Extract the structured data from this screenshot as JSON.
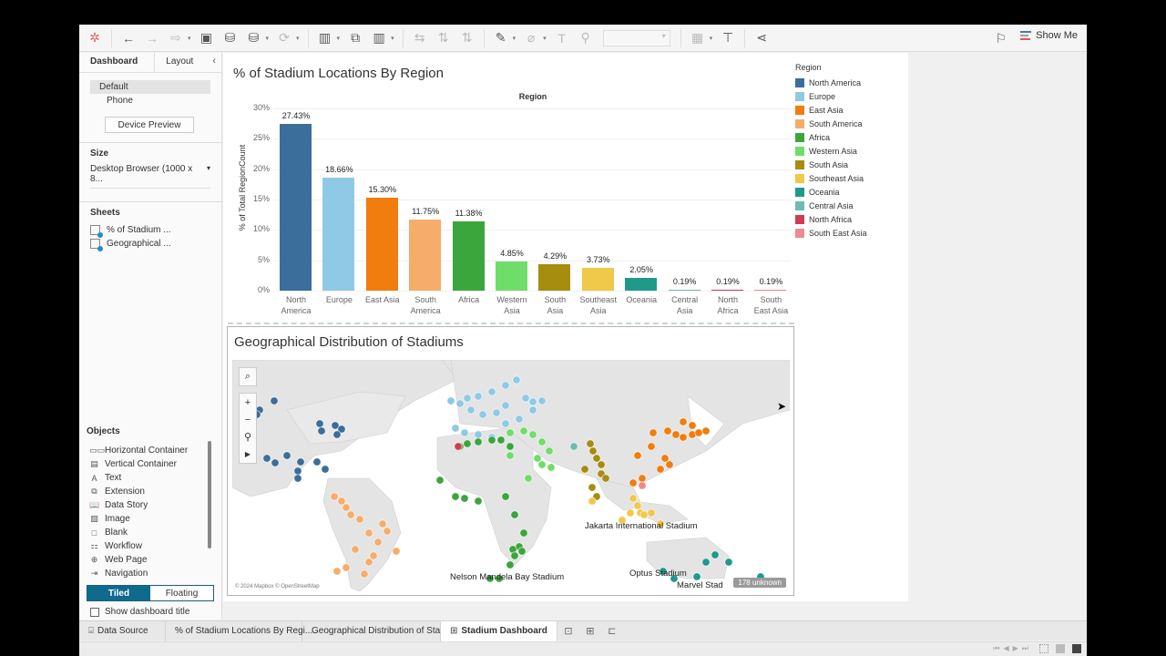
{
  "toolbar": {
    "show_me_label": "Show Me",
    "show_me_colors": [
      "#4e79a7",
      "#e15759",
      "#a0a0a0"
    ]
  },
  "left_panel": {
    "tabs": [
      {
        "label": "Dashboard"
      },
      {
        "label": "Layout"
      }
    ],
    "devices": [
      {
        "label": "Default"
      },
      {
        "label": "Phone"
      }
    ],
    "device_preview_label": "Device Preview",
    "size": {
      "title": "Size",
      "value": "Desktop Browser (1000 x 8..."
    },
    "sheets": {
      "title": "Sheets",
      "items": [
        {
          "label": "% of Stadium ..."
        },
        {
          "label": "Geographical ..."
        }
      ]
    },
    "objects": {
      "title": "Objects",
      "items": [
        {
          "label": "Horizontal Container",
          "icon": "▭▭"
        },
        {
          "label": "Vertical Container",
          "icon": "▤"
        },
        {
          "label": "Text",
          "icon": "A"
        },
        {
          "label": "Extension",
          "icon": "⧉"
        },
        {
          "label": "Data Story",
          "icon": "📖"
        },
        {
          "label": "Image",
          "icon": "▨"
        },
        {
          "label": "Blank",
          "icon": "□"
        },
        {
          "label": "Workflow",
          "icon": "⚏"
        },
        {
          "label": "Web Page",
          "icon": "⊕"
        },
        {
          "label": "Navigation",
          "icon": "⇥"
        }
      ],
      "tiled_label": "Tiled",
      "floating_label": "Floating",
      "show_title_label": "Show dashboard title"
    }
  },
  "chart": {
    "title": "% of Stadium Locations By Region",
    "column_header": "Region",
    "ylabel": "% of Total RegionCount",
    "yticks": [
      "30%",
      "25%",
      "20%",
      "15%",
      "10%",
      "5%",
      "0%"
    ]
  },
  "chart_data": {
    "type": "bar",
    "title": "% of Stadium Locations By Region",
    "xlabel": "Region",
    "ylabel": "% of Total RegionCount",
    "ylim": [
      0,
      30
    ],
    "categories": [
      "North America",
      "Europe",
      "East Asia",
      "South America",
      "Africa",
      "Western Asia",
      "South Asia",
      "Southeast Asia",
      "Oceania",
      "Central Asia",
      "North Africa",
      "South East Asia"
    ],
    "values": [
      27.43,
      18.66,
      15.3,
      11.75,
      11.38,
      4.85,
      4.29,
      3.73,
      2.05,
      0.19,
      0.19,
      0.19
    ],
    "labels": [
      "27.43%",
      "18.66%",
      "15.30%",
      "11.75%",
      "11.38%",
      "4.85%",
      "4.29%",
      "3.73%",
      "2.05%",
      "0.19%",
      "0.19%",
      "0.19%"
    ],
    "colors": [
      "#3b6e9a",
      "#8ecae6",
      "#f07d0e",
      "#f6ad6b",
      "#3aa63c",
      "#6fdd6a",
      "#a68d0d",
      "#f0c84a",
      "#1f9a8a",
      "#6dbcb0",
      "#d13a52",
      "#f08890"
    ],
    "legend_position": "right",
    "grid": true
  },
  "legend": {
    "title": "Region",
    "items": [
      {
        "label": "North America",
        "color": "#3b6e9a"
      },
      {
        "label": "Europe",
        "color": "#8ecae6"
      },
      {
        "label": "East Asia",
        "color": "#f07d0e"
      },
      {
        "label": "South America",
        "color": "#f6ad6b"
      },
      {
        "label": "Africa",
        "color": "#3aa63c"
      },
      {
        "label": "Western Asia",
        "color": "#6fdd6a"
      },
      {
        "label": "South Asia",
        "color": "#a68d0d"
      },
      {
        "label": "Southeast Asia",
        "color": "#f0c84a"
      },
      {
        "label": "Oceania",
        "color": "#1f9a8a"
      },
      {
        "label": "Central Asia",
        "color": "#6dbcb0"
      },
      {
        "label": "North Africa",
        "color": "#d13a52"
      },
      {
        "label": "South East Asia",
        "color": "#f08890"
      }
    ]
  },
  "map": {
    "title": "Geographical Distribution of Stadiums",
    "labels": [
      {
        "text": "Jakarta International Stadium"
      },
      {
        "text": "Nelson Mandela Bay Stadium"
      },
      {
        "text": "Optus Stadium"
      },
      {
        "text": "Marvel Stad"
      }
    ],
    "unknown_badge": "178 unknown",
    "copyright": "© 2024 Mapbox © OpenStreetMap"
  },
  "bottom_tabs": {
    "items": [
      {
        "label": "Data Source",
        "icon": "⌸"
      },
      {
        "label": "% of Stadium Locations By Regi..."
      },
      {
        "label": "Geographical Distribution of Sta..."
      },
      {
        "label": "Stadium Dashboard",
        "icon": "⊞"
      }
    ]
  }
}
